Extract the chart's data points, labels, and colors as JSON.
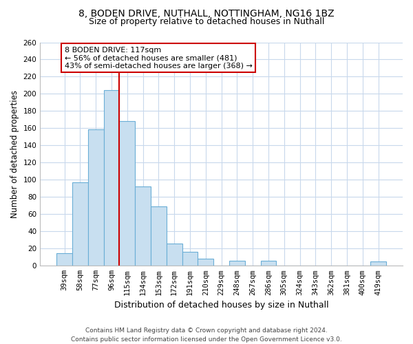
{
  "title1": "8, BODEN DRIVE, NUTHALL, NOTTINGHAM, NG16 1BZ",
  "title2": "Size of property relative to detached houses in Nuthall",
  "xlabel": "Distribution of detached houses by size in Nuthall",
  "ylabel": "Number of detached properties",
  "bar_labels": [
    "39sqm",
    "58sqm",
    "77sqm",
    "96sqm",
    "115sqm",
    "134sqm",
    "153sqm",
    "172sqm",
    "191sqm",
    "210sqm",
    "229sqm",
    "248sqm",
    "267sqm",
    "286sqm",
    "305sqm",
    "324sqm",
    "343sqm",
    "362sqm",
    "381sqm",
    "400sqm",
    "419sqm"
  ],
  "bar_values": [
    15,
    97,
    159,
    204,
    168,
    92,
    69,
    26,
    16,
    8,
    0,
    6,
    0,
    6,
    0,
    0,
    0,
    0,
    0,
    0,
    5
  ],
  "bar_color": "#c8dff0",
  "bar_edge_color": "#6aaed6",
  "highlight_line_index": 3.5,
  "highlight_line_color": "#cc0000",
  "annotation_line1": "8 BODEN DRIVE: 117sqm",
  "annotation_line2": "← 56% of detached houses are smaller (481)",
  "annotation_line3": "43% of semi-detached houses are larger (368) →",
  "annotation_box_color": "#ffffff",
  "annotation_box_edge_color": "#cc0000",
  "ylim": [
    0,
    260
  ],
  "yticks": [
    0,
    20,
    40,
    60,
    80,
    100,
    120,
    140,
    160,
    180,
    200,
    220,
    240,
    260
  ],
  "footer1": "Contains HM Land Registry data © Crown copyright and database right 2024.",
  "footer2": "Contains public sector information licensed under the Open Government Licence v3.0.",
  "bg_color": "#ffffff",
  "grid_color": "#c8d8ec",
  "title1_fontsize": 10,
  "title2_fontsize": 9,
  "xlabel_fontsize": 9,
  "ylabel_fontsize": 8.5,
  "tick_fontsize": 7.5,
  "annot_fontsize": 8,
  "footer_fontsize": 6.5
}
